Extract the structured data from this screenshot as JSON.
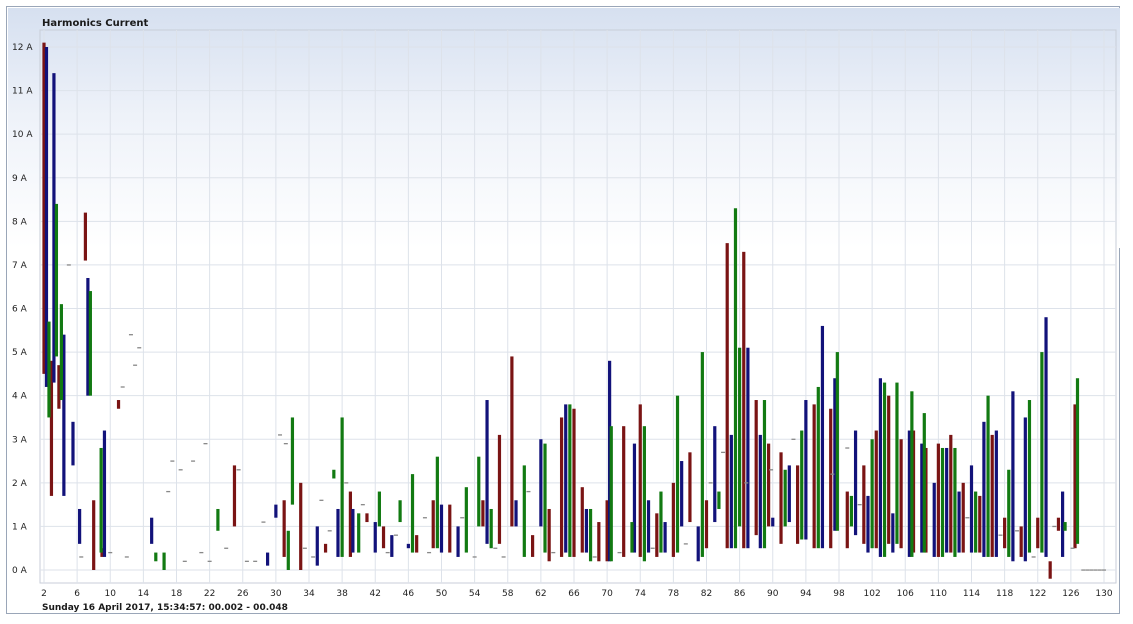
{
  "chart_data": {
    "type": "bar",
    "title": "Harmonics Current",
    "footer": "Sunday 16 April 2017, 15:34:57: 00.002 - 00.048",
    "xlabel": "",
    "ylabel": "",
    "x_ticks": [
      "2",
      "6",
      "10",
      "14",
      "18",
      "22",
      "26",
      "30",
      "34",
      "38",
      "42",
      "46",
      "50",
      "54",
      "58",
      "62",
      "66",
      "70",
      "74",
      "78",
      "82",
      "86",
      "90",
      "94",
      "98",
      "102",
      "106",
      "110",
      "114",
      "118",
      "122",
      "126",
      "130"
    ],
    "y_ticks": [
      "0 A",
      "1 A",
      "2 A",
      "3 A",
      "4 A",
      "5 A",
      "6 A",
      "7 A",
      "8 A",
      "9 A",
      "10 A",
      "11 A",
      "12 A"
    ],
    "xlim": [
      1.5,
      131
    ],
    "ylim": [
      -0.3,
      12.4
    ],
    "grid": true,
    "colors": {
      "red": "#7a1414",
      "blue": "#12127a",
      "green": "#127a12"
    },
    "note_bars": "Each bar is a floating min-max range for one harmonic order; the three series are offset slightly on the order axis.",
    "series": [
      {
        "color": "red",
        "bars": [
          [
            2.0,
            4.5,
            12.1
          ],
          [
            2.9,
            1.7,
            4.8
          ],
          [
            3.8,
            3.7,
            4.7
          ],
          [
            7.0,
            7.1,
            8.2
          ],
          [
            8.0,
            0,
            1.6
          ],
          [
            9.0,
            0.3,
            0.5
          ],
          [
            11.0,
            3.7,
            3.9
          ],
          [
            25.0,
            1.0,
            2.4
          ],
          [
            31.0,
            0.3,
            1.6
          ],
          [
            33.0,
            0,
            2.0
          ],
          [
            36.0,
            0.4,
            0.6
          ],
          [
            39.0,
            0.3,
            1.8
          ],
          [
            41.0,
            1.1,
            1.3
          ],
          [
            43.0,
            0.5,
            1.0
          ],
          [
            47.0,
            0.4,
            0.8
          ],
          [
            49.0,
            0.5,
            1.6
          ],
          [
            51.0,
            0.4,
            1.5
          ],
          [
            55.0,
            1.0,
            1.6
          ],
          [
            57.0,
            0.6,
            3.1
          ],
          [
            58.5,
            1.0,
            4.9
          ],
          [
            61.0,
            0.3,
            0.8
          ],
          [
            63.0,
            0.2,
            1.4
          ],
          [
            64.5,
            0.3,
            3.5
          ],
          [
            66.0,
            0.3,
            3.7
          ],
          [
            67.0,
            0.4,
            1.9
          ],
          [
            69.0,
            0.2,
            1.1
          ],
          [
            70.0,
            0.2,
            1.6
          ],
          [
            72.0,
            0.3,
            3.3
          ],
          [
            74.0,
            0.3,
            3.8
          ],
          [
            76.0,
            0.3,
            1.3
          ],
          [
            78.0,
            0.3,
            2.0
          ],
          [
            80.0,
            1.1,
            2.7
          ],
          [
            82.0,
            0.5,
            1.6
          ],
          [
            84.5,
            0.5,
            7.5
          ],
          [
            86.5,
            0.5,
            7.3
          ],
          [
            88.0,
            0.8,
            3.9
          ],
          [
            89.5,
            1.0,
            2.9
          ],
          [
            91.0,
            0.6,
            2.7
          ],
          [
            93.0,
            0.6,
            2.4
          ],
          [
            95.0,
            0.5,
            3.8
          ],
          [
            97.0,
            0.5,
            3.7
          ],
          [
            99.0,
            0.5,
            1.8
          ],
          [
            101.0,
            0.6,
            2.4
          ],
          [
            102.5,
            0.5,
            3.2
          ],
          [
            104.0,
            0.6,
            4.0
          ],
          [
            105.5,
            0.5,
            3.0
          ],
          [
            107.0,
            0.4,
            3.2
          ],
          [
            108.5,
            0.4,
            2.8
          ],
          [
            110.0,
            0.3,
            2.9
          ],
          [
            111.5,
            0.4,
            3.1
          ],
          [
            113.0,
            0.4,
            2.0
          ],
          [
            115.0,
            0.4,
            1.7
          ],
          [
            116.5,
            0.3,
            3.1
          ],
          [
            118.0,
            0.5,
            1.2
          ],
          [
            120.0,
            0.3,
            1.0
          ],
          [
            122.0,
            0.5,
            1.2
          ],
          [
            123.5,
            -0.2,
            0.2
          ],
          [
            124.5,
            0.9,
            1.2
          ],
          [
            126.5,
            0.5,
            3.8
          ]
        ]
      },
      {
        "color": "blue",
        "bars": [
          [
            2.3,
            4.2,
            12.0
          ],
          [
            3.2,
            4.3,
            11.4
          ],
          [
            4.4,
            1.7,
            5.4
          ],
          [
            5.5,
            2.4,
            3.4
          ],
          [
            6.3,
            0.6,
            1.4
          ],
          [
            7.3,
            4.0,
            6.7
          ],
          [
            9.3,
            0.3,
            3.2
          ],
          [
            15.0,
            0.6,
            1.2
          ],
          [
            29.0,
            0.1,
            0.4
          ],
          [
            30.0,
            1.2,
            1.5
          ],
          [
            35.0,
            0.1,
            1.0
          ],
          [
            37.5,
            0.3,
            1.4
          ],
          [
            39.3,
            0.4,
            1.4
          ],
          [
            42.0,
            0.4,
            1.1
          ],
          [
            44.0,
            0.3,
            0.8
          ],
          [
            46.0,
            0.5,
            0.6
          ],
          [
            50.0,
            0.4,
            1.5
          ],
          [
            52.0,
            0.3,
            1.0
          ],
          [
            55.5,
            0.6,
            3.9
          ],
          [
            59.0,
            1.0,
            1.6
          ],
          [
            62.0,
            1.0,
            3.0
          ],
          [
            65.0,
            0.4,
            3.8
          ],
          [
            67.5,
            0.4,
            1.4
          ],
          [
            70.3,
            0.2,
            4.8
          ],
          [
            73.3,
            0.4,
            2.9
          ],
          [
            75.0,
            0.4,
            1.6
          ],
          [
            77.0,
            0.4,
            1.1
          ],
          [
            79.0,
            1.0,
            2.5
          ],
          [
            81.0,
            0.2,
            1.0
          ],
          [
            83.0,
            1.1,
            3.3
          ],
          [
            85.0,
            0.5,
            3.1
          ],
          [
            87.0,
            0.5,
            5.1
          ],
          [
            88.5,
            0.5,
            3.1
          ],
          [
            90.0,
            1.0,
            1.2
          ],
          [
            92.0,
            1.1,
            2.4
          ],
          [
            94.0,
            0.7,
            3.9
          ],
          [
            96.0,
            0.5,
            5.6
          ],
          [
            97.5,
            0.9,
            4.4
          ],
          [
            100.0,
            0.8,
            3.2
          ],
          [
            101.5,
            0.4,
            1.7
          ],
          [
            103.0,
            0.3,
            4.4
          ],
          [
            104.5,
            0.4,
            1.3
          ],
          [
            106.5,
            0.3,
            3.2
          ],
          [
            108.0,
            0.4,
            2.9
          ],
          [
            109.5,
            0.3,
            2.0
          ],
          [
            111.0,
            0.4,
            2.8
          ],
          [
            112.5,
            0.4,
            1.8
          ],
          [
            114.0,
            0.4,
            2.4
          ],
          [
            115.5,
            0.3,
            3.4
          ],
          [
            117.0,
            0.3,
            3.2
          ],
          [
            119.0,
            0.2,
            4.1
          ],
          [
            120.5,
            0.2,
            3.5
          ],
          [
            123.0,
            0.3,
            5.8
          ],
          [
            125.0,
            0.3,
            1.8
          ]
        ]
      },
      {
        "color": "green",
        "bars": [
          [
            2.6,
            3.5,
            5.7
          ],
          [
            3.5,
            4.9,
            8.4
          ],
          [
            4.1,
            3.9,
            6.1
          ],
          [
            7.6,
            4.0,
            6.4
          ],
          [
            8.9,
            0.4,
            2.8
          ],
          [
            15.5,
            0.2,
            0.4
          ],
          [
            16.5,
            0,
            0.4
          ],
          [
            23.0,
            0.9,
            1.4
          ],
          [
            31.5,
            0,
            0.9
          ],
          [
            32.0,
            1.5,
            3.5
          ],
          [
            37.0,
            2.1,
            2.3
          ],
          [
            38.0,
            0.3,
            3.5
          ],
          [
            40.0,
            0.4,
            1.3
          ],
          [
            42.5,
            1.0,
            1.8
          ],
          [
            45.0,
            1.1,
            1.6
          ],
          [
            46.5,
            0.4,
            2.2
          ],
          [
            49.5,
            0.5,
            2.6
          ],
          [
            53.0,
            0.4,
            1.9
          ],
          [
            54.5,
            1.0,
            2.6
          ],
          [
            56.0,
            0.5,
            1.4
          ],
          [
            60.0,
            0.3,
            2.4
          ],
          [
            62.5,
            0.4,
            2.9
          ],
          [
            65.5,
            0.3,
            3.8
          ],
          [
            68.0,
            0.2,
            1.4
          ],
          [
            70.5,
            0.2,
            3.3
          ],
          [
            73.0,
            0.4,
            1.1
          ],
          [
            74.5,
            0.2,
            3.3
          ],
          [
            76.5,
            0.4,
            1.8
          ],
          [
            78.5,
            0.4,
            4.0
          ],
          [
            81.5,
            0.3,
            5.0
          ],
          [
            83.5,
            1.4,
            1.8
          ],
          [
            85.5,
            0.5,
            8.3
          ],
          [
            86.0,
            1.0,
            5.1
          ],
          [
            89.0,
            0.5,
            3.9
          ],
          [
            91.5,
            1.0,
            2.3
          ],
          [
            93.5,
            0.7,
            3.2
          ],
          [
            95.5,
            0.5,
            4.2
          ],
          [
            97.8,
            0.9,
            5.0
          ],
          [
            99.5,
            1.0,
            1.7
          ],
          [
            102.0,
            0.5,
            3.0
          ],
          [
            103.5,
            0.3,
            4.3
          ],
          [
            105.0,
            0.6,
            4.3
          ],
          [
            106.8,
            0.3,
            4.1
          ],
          [
            108.3,
            0.4,
            3.6
          ],
          [
            110.5,
            0.3,
            2.8
          ],
          [
            112.0,
            0.3,
            2.8
          ],
          [
            114.5,
            0.4,
            1.8
          ],
          [
            116.0,
            0.3,
            4.0
          ],
          [
            118.5,
            0.3,
            2.3
          ],
          [
            121.0,
            0.4,
            3.9
          ],
          [
            122.5,
            0.4,
            5.0
          ],
          [
            125.3,
            0.9,
            1.1
          ],
          [
            126.8,
            0.6,
            4.4
          ]
        ]
      },
      {
        "color": "gray",
        "ticks": [
          [
            5.0,
            7.0
          ],
          [
            6.5,
            0.3
          ],
          [
            10.0,
            0.4
          ],
          [
            11.5,
            4.2
          ],
          [
            12.0,
            0.3
          ],
          [
            12.5,
            5.4
          ],
          [
            13.0,
            4.7
          ],
          [
            13.5,
            5.1
          ],
          [
            17.0,
            1.8
          ],
          [
            17.5,
            2.5
          ],
          [
            18.5,
            2.3
          ],
          [
            19.0,
            0.2
          ],
          [
            20.0,
            2.5
          ],
          [
            21.0,
            0.4
          ],
          [
            21.5,
            2.9
          ],
          [
            22.0,
            0.2
          ],
          [
            24.0,
            0.5
          ],
          [
            25.5,
            2.3
          ],
          [
            26.5,
            0.2
          ],
          [
            27.5,
            0.2
          ],
          [
            28.5,
            1.1
          ],
          [
            30.5,
            3.1
          ],
          [
            31.2,
            2.9
          ],
          [
            33.5,
            0.5
          ],
          [
            34.5,
            0.3
          ],
          [
            35.5,
            1.6
          ],
          [
            36.5,
            0.9
          ],
          [
            38.5,
            2.0
          ],
          [
            40.5,
            1.5
          ],
          [
            43.5,
            0.4
          ],
          [
            44.5,
            0.8
          ],
          [
            48.0,
            1.2
          ],
          [
            48.5,
            0.4
          ],
          [
            52.5,
            1.2
          ],
          [
            54.0,
            0.3
          ],
          [
            56.5,
            0.5
          ],
          [
            57.5,
            0.3
          ],
          [
            60.5,
            1.8
          ],
          [
            63.5,
            0.4
          ],
          [
            68.5,
            0.3
          ],
          [
            71.5,
            0.4
          ],
          [
            75.5,
            0.5
          ],
          [
            79.5,
            0.6
          ],
          [
            82.5,
            2.0
          ],
          [
            84.0,
            2.7
          ],
          [
            86.8,
            2.0
          ],
          [
            89.8,
            2.3
          ],
          [
            92.5,
            3.0
          ],
          [
            97.2,
            2.2
          ],
          [
            99.0,
            2.8
          ],
          [
            100.5,
            1.5
          ],
          [
            113.5,
            1.2
          ],
          [
            117.5,
            0.8
          ],
          [
            119.5,
            0.9
          ],
          [
            121.5,
            0.3
          ],
          [
            124.0,
            1.0
          ],
          [
            126.2,
            0.5
          ],
          [
            127.5,
            0
          ],
          [
            128.0,
            0
          ],
          [
            128.5,
            0
          ],
          [
            129.0,
            0
          ],
          [
            129.5,
            0
          ],
          [
            130.0,
            0
          ]
        ]
      }
    ]
  }
}
